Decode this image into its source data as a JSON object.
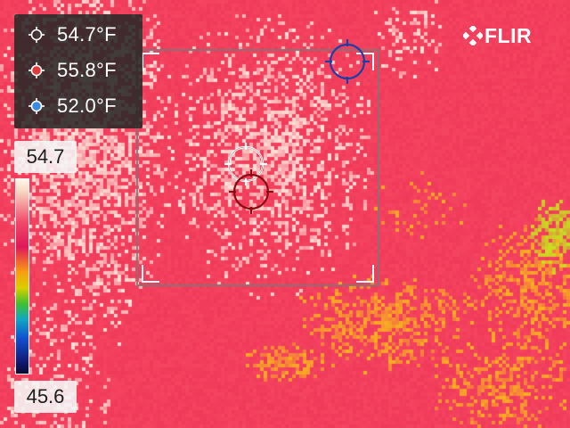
{
  "brand": {
    "logo_text": "FLIR"
  },
  "measurements": [
    {
      "name": "center-spot",
      "value": "54.7°F",
      "color": "#ffffff",
      "icon": "crosshair-white-icon"
    },
    {
      "name": "hot-spot",
      "value": "55.8°F",
      "color": "#e03a3a",
      "icon": "crosshair-red-icon"
    },
    {
      "name": "cold-spot",
      "value": "52.0°F",
      "color": "#3a8ae8",
      "icon": "crosshair-blue-icon"
    }
  ],
  "scale": {
    "max": "54.7",
    "min": "45.6"
  },
  "palette": {
    "base": "#f03a5a",
    "light": "#fde2d8",
    "hot": "#f8b020",
    "warmest": "#c8e020"
  }
}
